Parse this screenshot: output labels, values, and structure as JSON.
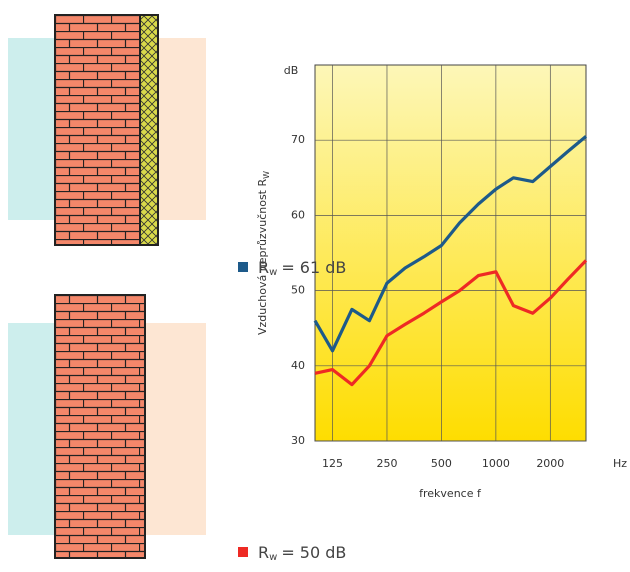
{
  "chart_data": {
    "type": "line",
    "y_label": "Vzduchová neprůzvučnost R",
    "y_label_sub": "W",
    "y_unit": "dB",
    "x_label": "frekvence f",
    "x_unit": "Hz",
    "x": [
      100,
      125,
      160,
      200,
      250,
      315,
      400,
      500,
      630,
      800,
      1000,
      1250,
      1600,
      2000,
      2500,
      3150
    ],
    "xlim": [
      100,
      3150
    ],
    "xticks": [
      125,
      250,
      500,
      1000,
      2000
    ],
    "xlog": true,
    "ylim": [
      30,
      80
    ],
    "yticks": [
      30,
      40,
      50,
      60,
      70
    ],
    "grid": true,
    "series": [
      {
        "name": "R",
        "name_sub": "w",
        "name_value": "= 61 dB",
        "color": "#1d5a8a",
        "values": [
          46,
          42,
          47.5,
          46,
          51,
          53,
          54.5,
          56,
          59,
          61.5,
          63.5,
          65,
          64.5,
          66.5,
          68.5,
          70.5
        ]
      },
      {
        "name": "R",
        "name_sub": "w",
        "name_value": "= 50 dB",
        "color": "#ee2a24",
        "values": [
          39,
          39.5,
          37.5,
          40,
          44,
          45.5,
          47,
          48.5,
          50,
          52,
          52.5,
          48,
          47,
          49,
          51.5,
          54
        ]
      }
    ]
  }
}
